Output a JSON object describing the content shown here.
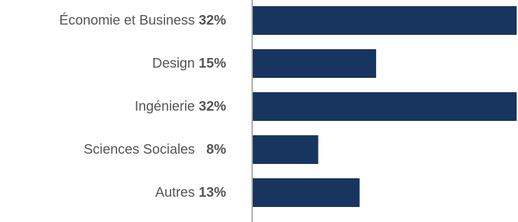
{
  "chart_data": {
    "type": "bar",
    "orientation": "horizontal",
    "categories": [
      "Économie et Business",
      "Design",
      "Ingénierie",
      "Sciences Sociales",
      "Autres"
    ],
    "values": [
      32,
      15,
      32,
      8,
      13
    ],
    "value_labels": [
      "32%",
      "15%",
      "32%",
      "8%",
      "13%"
    ],
    "xlim": [
      0,
      32
    ],
    "grid": false,
    "legend": "none",
    "bar_color": "#17355e",
    "axis_color": "#555555",
    "label_color": "#555555"
  }
}
